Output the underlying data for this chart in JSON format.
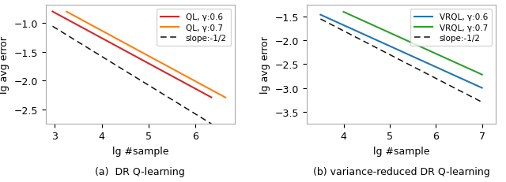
{
  "left": {
    "lines": [
      {
        "label": "QL, γ:0.6",
        "color": "#d62728",
        "x_start": 2.95,
        "x_end": 6.35,
        "slope": -0.44,
        "intercept": 0.5
      },
      {
        "label": "QL, γ:0.7",
        "color": "#ff7f0e",
        "x_start": 3.25,
        "x_end": 6.65,
        "slope": -0.44,
        "intercept": 0.63
      },
      {
        "label": "slope:-1/2",
        "color": "#111111",
        "linestyle": "dashed",
        "x_start": 2.95,
        "x_end": 6.35,
        "slope": -0.5,
        "intercept": 0.42
      }
    ],
    "xlim": [
      2.8,
      6.85
    ],
    "ylim": [
      -2.75,
      -0.68
    ],
    "xticks": [
      3,
      4,
      5,
      6
    ],
    "xlabel": "lg #sample",
    "ylabel": "lg avg error",
    "caption": "(a)  DR Q-learning"
  },
  "right": {
    "lines": [
      {
        "label": "VRQL, γ:0.6",
        "color": "#1f77b4",
        "x_start": 3.5,
        "x_end": 7.0,
        "slope": -0.44,
        "intercept": 0.08
      },
      {
        "label": "VRQL, γ:0.7",
        "color": "#2ca02c",
        "x_start": 4.0,
        "x_end": 7.0,
        "slope": -0.44,
        "intercept": 0.36
      },
      {
        "label": "slope:-1/2",
        "color": "#111111",
        "linestyle": "dashed",
        "x_start": 3.5,
        "x_end": 7.0,
        "slope": -0.5,
        "intercept": 0.2
      }
    ],
    "xlim": [
      3.2,
      7.3
    ],
    "ylim": [
      -3.75,
      -1.25
    ],
    "xticks": [
      4,
      5,
      6,
      7
    ],
    "xlabel": "lg #sample",
    "ylabel": "lg avg error",
    "caption": "(b) variance-reduced DR Q-learning"
  }
}
